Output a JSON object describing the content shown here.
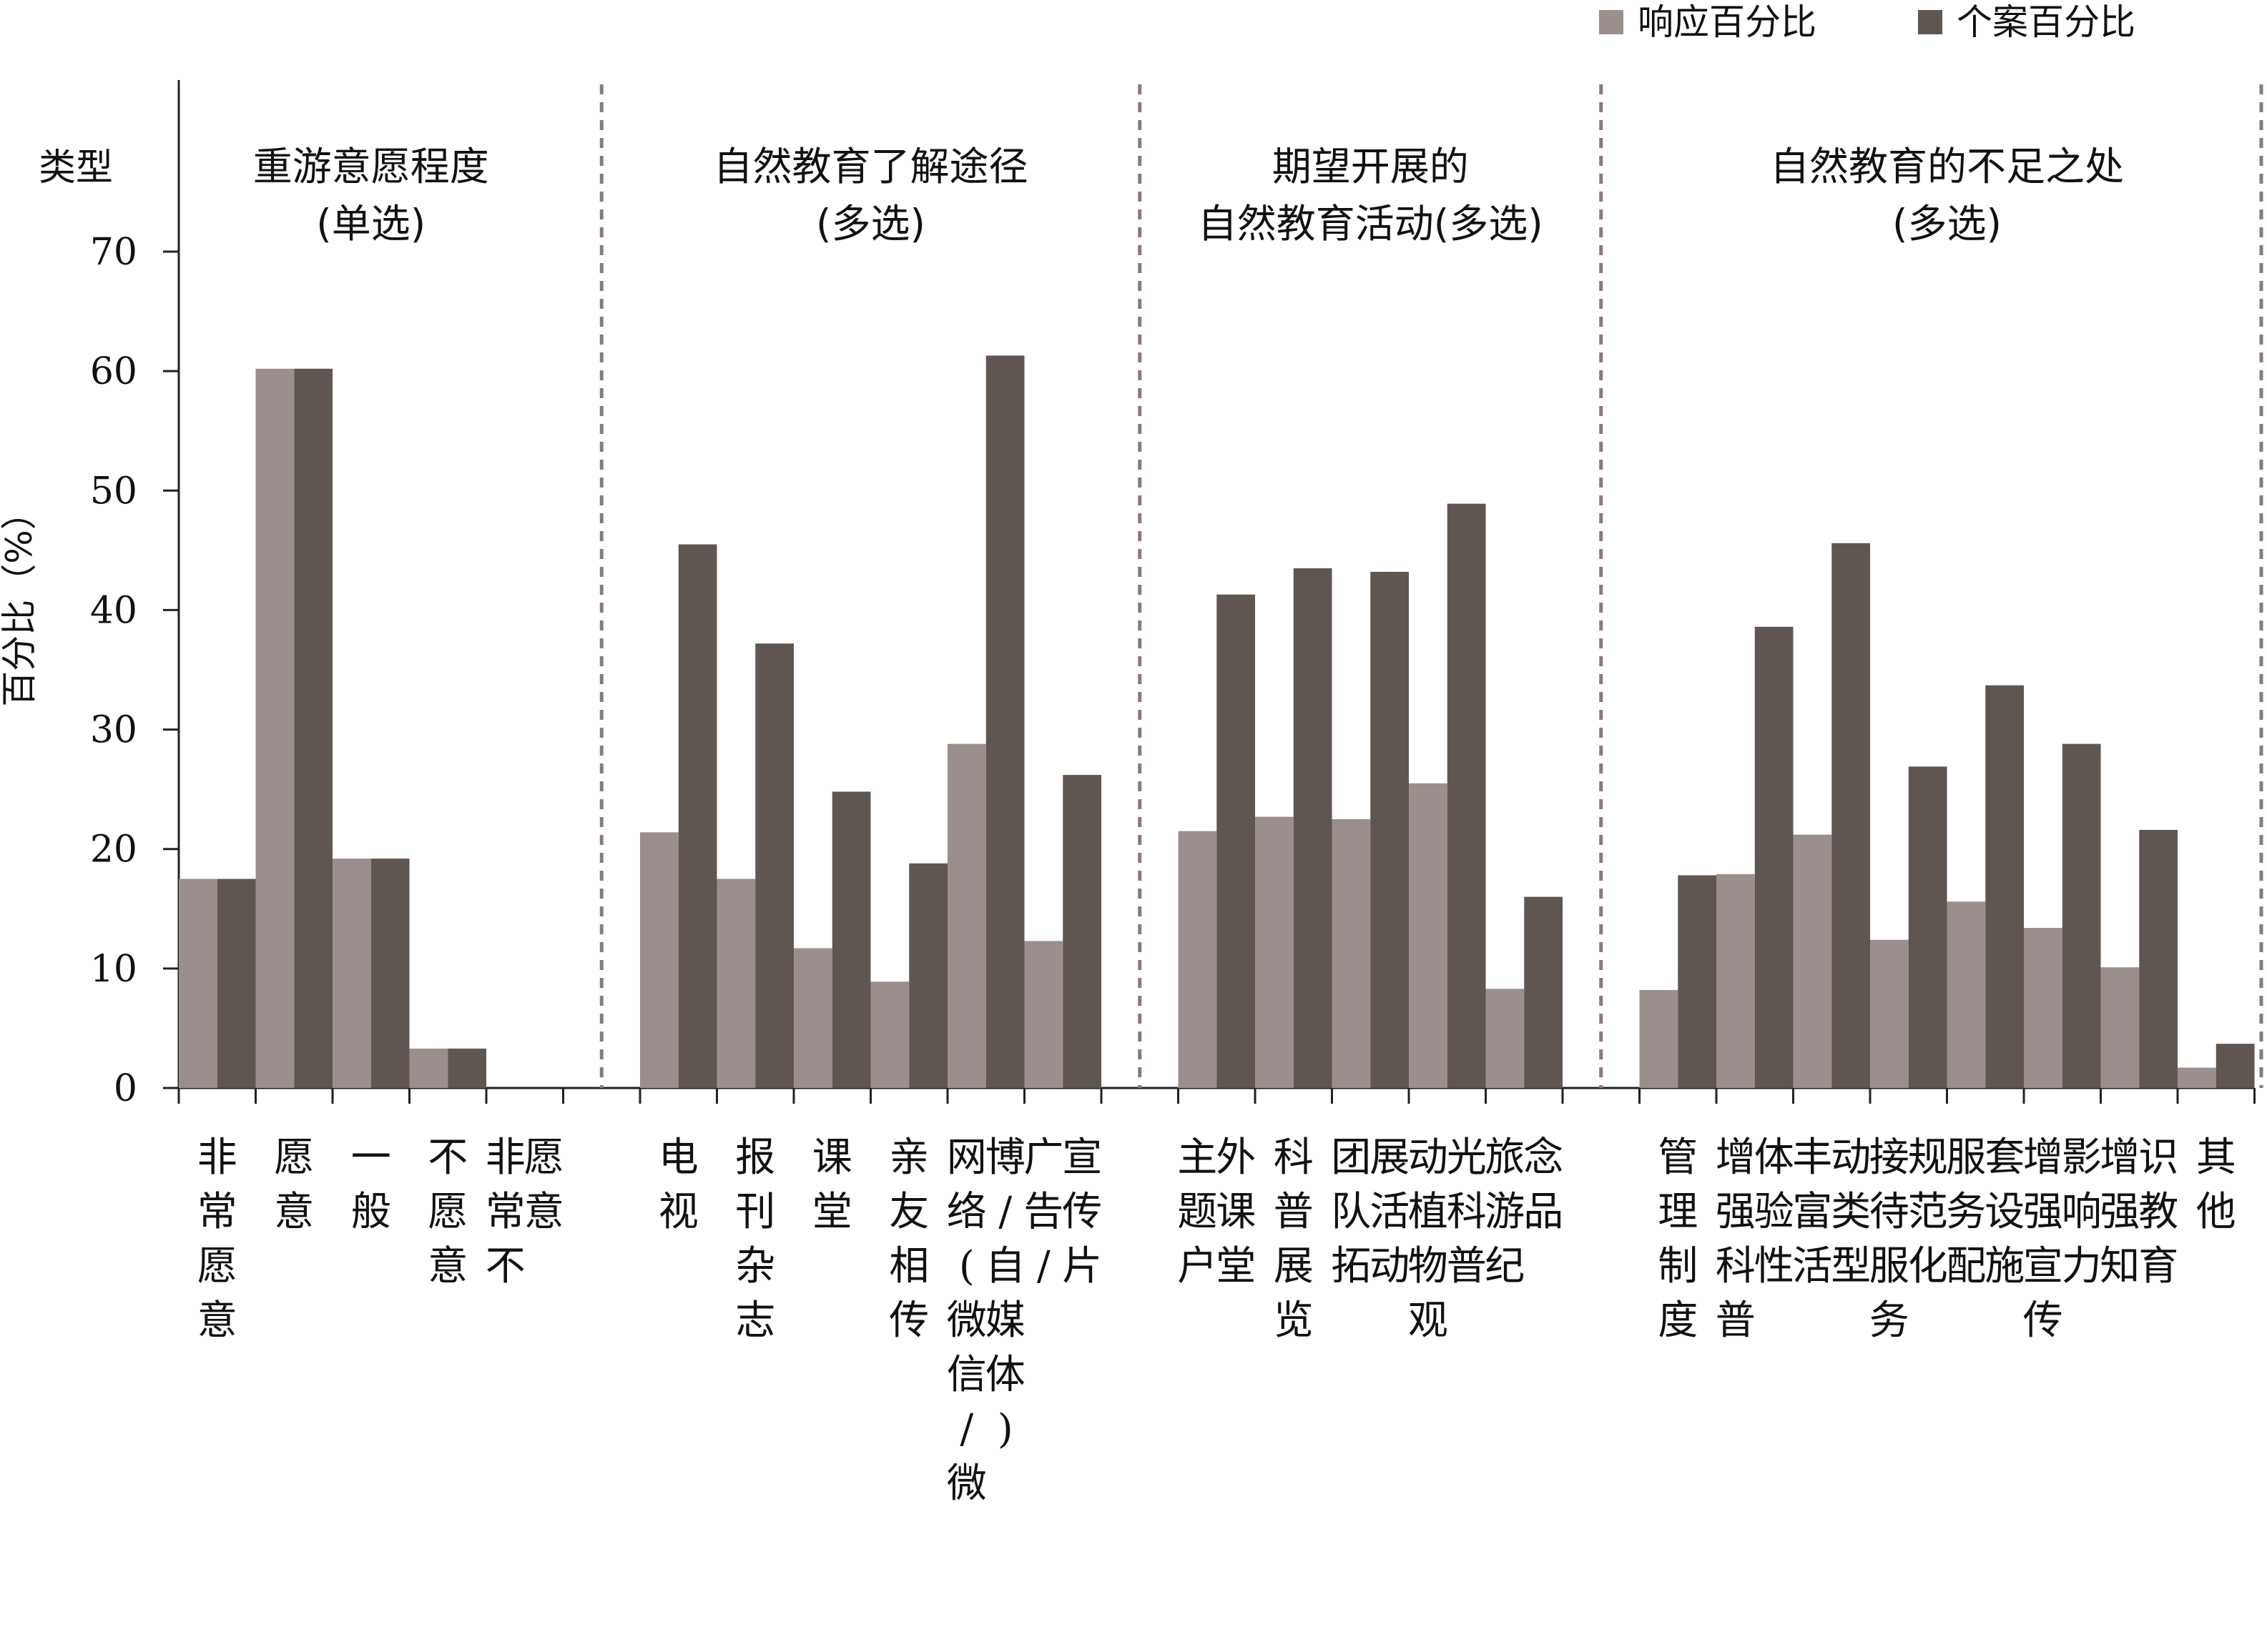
{
  "chart_data": {
    "type": "bar",
    "ylabel": "百分比（%）",
    "type_label": "类型",
    "ylim": [
      0,
      70
    ],
    "yticks": [
      "0",
      "10",
      "20",
      "30",
      "40",
      "50",
      "60",
      "70"
    ],
    "legend": {
      "position": "top-right",
      "items": [
        {
          "label": "响应百分比",
          "color": "#9a8f8c"
        },
        {
          "label": "个案百分比",
          "color": "#5f5652"
        }
      ]
    },
    "colors": {
      "response": "#9a8f8c",
      "case": "#5f5652",
      "separator": "#8a7a78"
    },
    "groups": [
      {
        "title": [
          "重游意愿程度",
          "(单选)"
        ],
        "categories": [
          {
            "label": "非常愿意",
            "response": 17.5,
            "case": 17.5
          },
          {
            "label": "愿意",
            "response": 60.2,
            "case": 60.2
          },
          {
            "label": "一般",
            "response": 19.2,
            "case": 19.2
          },
          {
            "label": "不愿意",
            "response": 3.3,
            "case": 3.3
          },
          {
            "label": "非常不愿意",
            "response": 0,
            "case": 0
          }
        ]
      },
      {
        "title": [
          "自然教育了解途径",
          "(多选)"
        ],
        "categories": [
          {
            "label": "电视",
            "response": 21.4,
            "case": 45.5
          },
          {
            "label": "报刊杂志",
            "response": 17.5,
            "case": 37.2
          },
          {
            "label": "课堂",
            "response": 11.7,
            "case": 24.8
          },
          {
            "label": "亲友相传",
            "response": 8.9,
            "case": 18.8
          },
          {
            "label": "网络(微信/微博/自媒体)",
            "response": 28.8,
            "case": 61.3
          },
          {
            "label": "广告/宣传片",
            "response": 12.3,
            "case": 26.2
          }
        ]
      },
      {
        "title": [
          "期望开展的",
          "自然教育活动(多选)"
        ],
        "categories": [
          {
            "label": "主题户外课堂",
            "response": 21.5,
            "case": 41.3
          },
          {
            "label": "科普展览",
            "response": 22.7,
            "case": 43.5
          },
          {
            "label": "团队拓展活动",
            "response": 22.5,
            "case": 43.2
          },
          {
            "label": "动植物观光科普",
            "response": 25.5,
            "case": 48.9
          },
          {
            "label": "旅游纪念品",
            "response": 8.3,
            "case": 16.0
          }
        ]
      },
      {
        "title": [
          "自然教育的不足之处",
          "(多选)"
        ],
        "categories": [
          {
            "label": "管理制度",
            "response": 8.2,
            "case": 17.8
          },
          {
            "label": "增强科普体验性",
            "response": 17.9,
            "case": 38.6
          },
          {
            "label": "丰富活动类型",
            "response": 21.2,
            "case": 45.6
          },
          {
            "label": "接待服务规范化",
            "response": 12.4,
            "case": 26.9
          },
          {
            "label": "服务配套设施",
            "response": 15.6,
            "case": 33.7
          },
          {
            "label": "增强宣传影响力",
            "response": 13.4,
            "case": 28.8
          },
          {
            "label": "增强知识教育",
            "response": 10.1,
            "case": 21.6
          },
          {
            "label": "其他",
            "response": 1.7,
            "case": 3.7
          }
        ]
      }
    ]
  }
}
